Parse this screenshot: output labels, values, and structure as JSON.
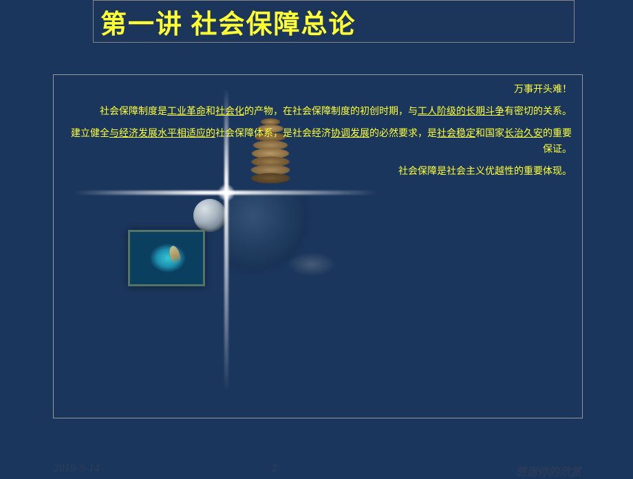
{
  "title": "第一讲  社会保障总论",
  "paragraphs": {
    "p1": "万事开头难！",
    "p2_a": "社会保障制度是",
    "p2_u1": "工业革命",
    "p2_b": "和",
    "p2_u2": "社会化",
    "p2_c": "的产物，在社会保障制度的初创时期，与",
    "p2_u3": "工人阶级的长期斗争",
    "p2_d": "有密切的关系。",
    "p3_a": "建立健全",
    "p3_u1": "与经济发展水平相适应的",
    "p3_b": "社会保障体系，是社会经济",
    "p3_u2": "协调发展",
    "p3_c": "的必然要求，是",
    "p3_u3": "社会稳定",
    "p3_d": "和国家",
    "p3_u4": "长治久安",
    "p3_e": "的重要保证。",
    "p4": "社会保障是社会主义优越性的重要体现。"
  },
  "footer": {
    "date": "2019-9-14",
    "page": "2",
    "thanks": "感谢你的欣赏"
  },
  "colors": {
    "background": "#1b365d",
    "accent_text": "#ffff33",
    "footer_text": "#2a3b5a"
  }
}
